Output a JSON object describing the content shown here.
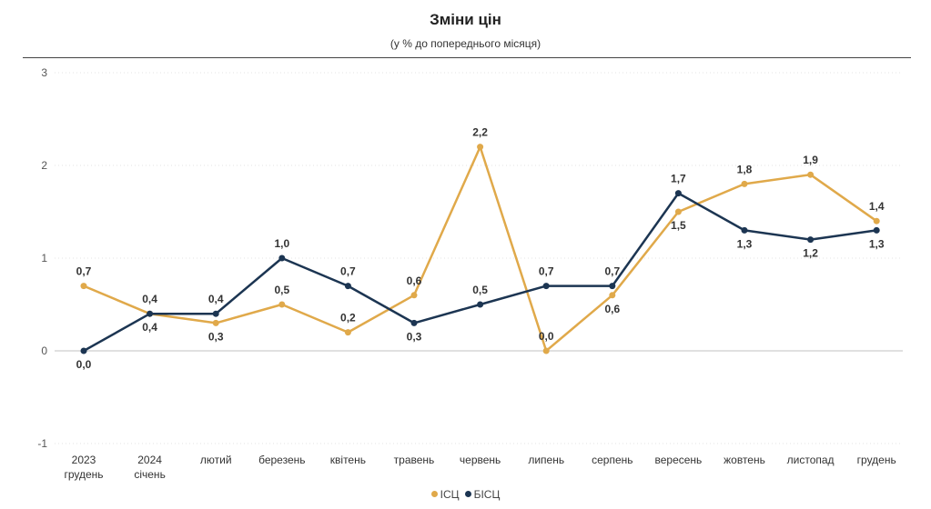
{
  "chart_data": {
    "type": "line",
    "title": "Зміни цін",
    "subtitle": "(у % до попереднього місяця)",
    "categories": [
      [
        "2023",
        "грудень"
      ],
      [
        "2024",
        "січень"
      ],
      [
        "лютий"
      ],
      [
        "березень"
      ],
      [
        "квітень"
      ],
      [
        "травень"
      ],
      [
        "червень"
      ],
      [
        "липень"
      ],
      [
        "серпень"
      ],
      [
        "вересень"
      ],
      [
        "жовтень"
      ],
      [
        "листопад"
      ],
      [
        "грудень"
      ]
    ],
    "series": [
      {
        "name": "ІСЦ",
        "color": "#E0A94A",
        "values": [
          0.7,
          0.4,
          0.3,
          0.5,
          0.2,
          0.6,
          2.2,
          0.0,
          0.6,
          1.5,
          1.8,
          1.9,
          1.4
        ],
        "labels": [
          "0,7",
          "0,4",
          "0,3",
          "0,5",
          "0,2",
          "0,6",
          "2,2",
          "0,0",
          "0,6",
          "1,5",
          "1,8",
          "1,9",
          "1,4"
        ],
        "label_pos": [
          "above",
          "below",
          "below",
          "above",
          "above",
          "above",
          "above",
          "above",
          "below",
          "below",
          "above",
          "above",
          "above"
        ]
      },
      {
        "name": "БІСЦ",
        "color": "#1C3552",
        "values": [
          0.0,
          0.4,
          0.4,
          1.0,
          0.7,
          0.3,
          0.5,
          0.7,
          0.7,
          1.7,
          1.3,
          1.2,
          1.3
        ],
        "labels": [
          "0,0",
          "0,4",
          "0,4",
          "1,0",
          "0,7",
          "0,3",
          "0,5",
          "0,7",
          "0,7",
          "1,7",
          "1,3",
          "1,2",
          "1,3"
        ],
        "label_pos": [
          "below",
          "above",
          "above",
          "above",
          "above",
          "below",
          "above",
          "above",
          "above",
          "above",
          "below",
          "below",
          "below"
        ]
      }
    ],
    "ylim": [
      -1,
      3
    ],
    "yticks": [
      -1,
      0,
      1,
      2,
      3
    ],
    "grid": true,
    "legend": "bottom"
  }
}
